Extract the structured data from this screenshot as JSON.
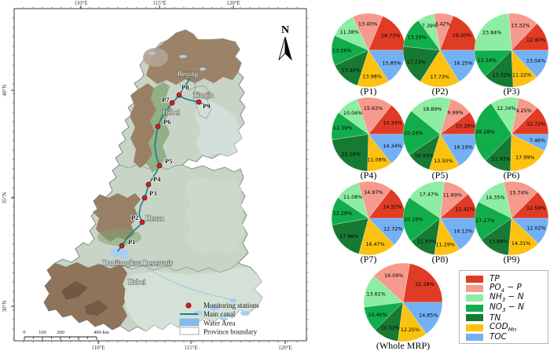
{
  "pollutants": [
    {
      "key": "tp",
      "color": "#e03b24",
      "segments": [
        {
          "t": "TP"
        }
      ]
    },
    {
      "key": "po4-p",
      "color": "#f59a8c",
      "segments": [
        {
          "t": "PO"
        },
        {
          "t": "4",
          "sub": true
        },
        {
          "t": " − P"
        }
      ]
    },
    {
      "key": "nh3-n",
      "color": "#8deda3",
      "segments": [
        {
          "t": "NH"
        },
        {
          "t": "3",
          "sub": true
        },
        {
          "t": " − N"
        }
      ]
    },
    {
      "key": "no3-n",
      "color": "#12ad4b",
      "segments": [
        {
          "t": "NO"
        },
        {
          "t": "3",
          "sub": true
        },
        {
          "t": " − N"
        }
      ]
    },
    {
      "key": "tn",
      "color": "#177a33",
      "segments": [
        {
          "t": "TN"
        }
      ]
    },
    {
      "key": "codmn",
      "color": "#fdc20e",
      "segments": [
        {
          "t": "COD"
        },
        {
          "t": "Mn",
          "sub": true
        }
      ]
    },
    {
      "key": "toc",
      "color": "#74b0f4",
      "segments": [
        {
          "t": "TOC"
        }
      ]
    }
  ],
  "chart_data": {
    "type": "pie",
    "categories": [
      "TP",
      "PO4-P",
      "NH3-N",
      "NO3-N",
      "TN",
      "CODMn",
      "TOC"
    ],
    "legend_position": "bottom-right",
    "start_angle": 0,
    "direction": "counterclockwise",
    "series": [
      {
        "name": "(P1)",
        "values": [
          18.73,
          13.4,
          11.38,
          13.26,
          13.4,
          13.98,
          15.85
        ]
      },
      {
        "name": "(P2)",
        "values": [
          19.2,
          8.42,
          7.39,
          13.29,
          17.73,
          17.73,
          16.25
        ]
      },
      {
        "name": "(P3)",
        "values": [
          12.9,
          13.32,
          23.84,
          12.34,
          13.32,
          11.22,
          13.04
        ]
      },
      {
        "name": "(P4)",
        "values": [
          14.34,
          15.63,
          10.04,
          12.39,
          22.16,
          11.08,
          14.34
        ]
      },
      {
        "name": "(P5)",
        "values": [
          10.26,
          9.99,
          18.89,
          20.24,
          10.93,
          13.5,
          16.19
        ]
      },
      {
        "name": "(P6)",
        "values": [
          12.72,
          9.25,
          12.34,
          28.28,
          11.93,
          17.99,
          7.46
        ]
      },
      {
        "name": "(P7)",
        "values": [
          14.52,
          14.97,
          11.08,
          12.28,
          17.96,
          16.47,
          12.72
        ]
      },
      {
        "name": "(P8)",
        "values": [
          11.42,
          11.69,
          17.47,
          20.16,
          11.83,
          11.29,
          16.13
        ]
      },
      {
        "name": "(P9)",
        "values": [
          12.59,
          15.74,
          14.35,
          17.17,
          13.88,
          14.31,
          12.02
        ]
      },
      {
        "name": "(Whole MRP)",
        "values": [
          22.28,
          16.09,
          13.61,
          10.4,
          10.52,
          12.25,
          14.85
        ]
      }
    ]
  },
  "map": {
    "north_label": "N",
    "top_ticks": [
      "110°E",
      "115°E",
      "120°E"
    ],
    "bottom_ticks": [
      "110°E",
      "115°E",
      "120°E"
    ],
    "left_ticks": [
      "40°N",
      "35°N",
      "30°N"
    ],
    "labels": {
      "beijing": "Beijing",
      "tianjin": "Tianjin",
      "hebei": "Hebei",
      "henan": "Henan",
      "hubei": "Hubei",
      "reservoir": "Danjiangkou Reservoir"
    },
    "stations": [
      {
        "name": "P1"
      },
      {
        "name": "P2"
      },
      {
        "name": "P3"
      },
      {
        "name": "P4"
      },
      {
        "name": "P5"
      },
      {
        "name": "P6"
      },
      {
        "name": "P7"
      },
      {
        "name": "P8"
      },
      {
        "name": "P9"
      }
    ],
    "legend": [
      {
        "label": "Monitoring stations"
      },
      {
        "label": "Main canal"
      },
      {
        "label": "Water Area"
      },
      {
        "label": "Province boundary"
      }
    ],
    "scalebar": [
      "0",
      "100",
      "200",
      "400 km"
    ]
  },
  "colors": {
    "canal": "#167d8e",
    "station_dot": "#d42020",
    "water": "#a9cdf5",
    "water_legend": "#86b9f1"
  }
}
